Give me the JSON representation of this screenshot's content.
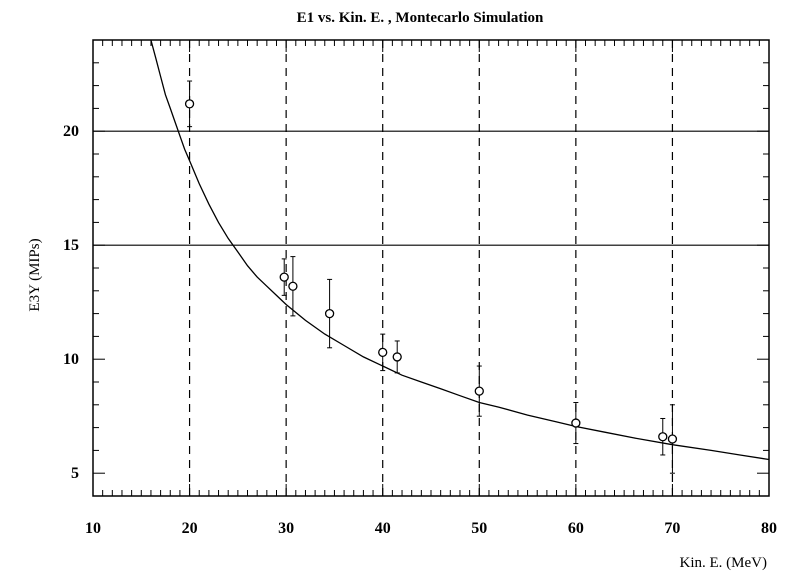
{
  "chart_data": {
    "type": "scatter",
    "title": "E1 vs. Kin.  E. , Montecarlo Simulation",
    "xlabel": "Kin.  E. (MeV)",
    "ylabel": "E3Y (MIPs)",
    "xlim": [
      10,
      80
    ],
    "ylim": [
      4,
      24
    ],
    "xticks": [
      10,
      20,
      30,
      40,
      50,
      60,
      70,
      80
    ],
    "yticks": [
      5,
      10,
      15,
      20
    ],
    "xtick_labels": [
      "10",
      "20",
      "30",
      "40",
      "50",
      "60",
      "70",
      "80"
    ],
    "ytick_labels": [
      "5",
      "10",
      "15",
      "20"
    ],
    "x_gridlines": [
      20,
      30,
      40,
      50,
      60,
      70
    ],
    "x_grid_style": "dashed",
    "y_reference_lines": [
      15,
      20
    ],
    "series": [
      {
        "type": "scatter-errorbar",
        "points": [
          {
            "x": 20.0,
            "y": 21.2,
            "err": 1.0
          },
          {
            "x": 29.8,
            "y": 13.6,
            "err": 0.8
          },
          {
            "x": 30.7,
            "y": 13.2,
            "err": 1.3
          },
          {
            "x": 34.5,
            "y": 12.0,
            "err": 1.5
          },
          {
            "x": 40.0,
            "y": 10.3,
            "err": 0.8
          },
          {
            "x": 41.5,
            "y": 10.1,
            "err": 0.7
          },
          {
            "x": 50.0,
            "y": 8.6,
            "err": 1.1
          },
          {
            "x": 60.0,
            "y": 7.2,
            "err": 0.9
          },
          {
            "x": 69.0,
            "y": 6.6,
            "err": 0.8
          },
          {
            "x": 70.0,
            "y": 6.5,
            "err": 1.5
          }
        ]
      },
      {
        "type": "line",
        "x": [
          16.0,
          16.5,
          17,
          17.5,
          18,
          18.5,
          19,
          19.5,
          20,
          21,
          22,
          23,
          24,
          25,
          26,
          27,
          28,
          29,
          30,
          32,
          34,
          36,
          38,
          40,
          42,
          44,
          46,
          48,
          50,
          52,
          55,
          58,
          60,
          63,
          66,
          70,
          74,
          77,
          80
        ],
        "y": [
          24.0,
          23.2,
          22.4,
          21.6,
          21.0,
          20.4,
          19.8,
          19.2,
          18.7,
          17.7,
          16.8,
          16.0,
          15.3,
          14.7,
          14.1,
          13.6,
          13.2,
          12.8,
          12.4,
          11.7,
          11.1,
          10.6,
          10.1,
          9.7,
          9.3,
          9.0,
          8.7,
          8.4,
          8.1,
          7.9,
          7.55,
          7.25,
          7.05,
          6.8,
          6.55,
          6.25,
          6.0,
          5.8,
          5.6
        ]
      }
    ]
  }
}
